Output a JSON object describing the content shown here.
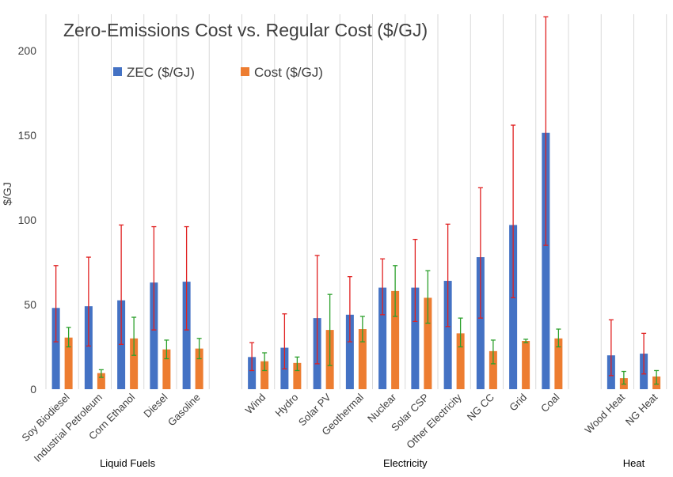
{
  "chart_data": {
    "type": "bar",
    "title": "Zero-Emissions Cost vs. Regular Cost ($/GJ)",
    "ylabel": "$/GJ",
    "xlabel": "",
    "ylim": [
      0,
      220
    ],
    "yticks": [
      0,
      50,
      100,
      150,
      200
    ],
    "grid": "vertical",
    "legend_position": "top-left",
    "groups": [
      {
        "label": "Liquid Fuels",
        "categories": [
          "Soy Biodiesel",
          "Industrial Petroleum",
          "Corn Ethanol",
          "Diesel",
          "Gasoline"
        ]
      },
      {
        "label": "Electricity",
        "categories": [
          "Wind",
          "Hydro",
          "Solar PV",
          "Geothermal",
          "Nuclear",
          "Solar CSP",
          "Other Electricity",
          "NG CC",
          "Grid",
          "Coal"
        ]
      },
      {
        "label": "Heat",
        "categories": [
          "Wood Heat",
          "NG Heat"
        ]
      }
    ],
    "series": [
      {
        "name": "ZEC ($/GJ)",
        "color": "#4472c4",
        "error_color": "#e02020",
        "values": [
          48,
          49,
          52.5,
          63,
          63.5,
          19,
          24.5,
          42,
          44,
          60,
          60,
          64,
          78,
          97,
          151.5,
          20,
          21
        ],
        "error_low": [
          28,
          25.5,
          26.5,
          35,
          35,
          11,
          12,
          15,
          28,
          44,
          40,
          37,
          42,
          54,
          85,
          8,
          9
        ],
        "error_high": [
          73,
          78,
          97,
          96,
          96,
          27.5,
          44.5,
          79,
          66.5,
          77,
          88.5,
          97.5,
          119,
          156,
          220,
          41,
          33
        ]
      },
      {
        "name": "Cost ($/GJ)",
        "color": "#ed7d31",
        "error_color": "#2ca02c",
        "values": [
          30.5,
          9.5,
          30,
          23.5,
          24,
          16.5,
          15.5,
          35,
          35.5,
          58,
          54,
          33,
          22.5,
          28.5,
          30,
          6.5,
          7.5
        ],
        "error_low": [
          25,
          7,
          20,
          18,
          18,
          11,
          11,
          14,
          28,
          43,
          39,
          25,
          15,
          27.5,
          25,
          3,
          3
        ],
        "error_high": [
          36.5,
          11.5,
          42.5,
          29,
          30,
          21.5,
          19,
          56,
          43,
          73,
          70,
          42,
          29,
          29.5,
          35.5,
          10.5,
          11
        ]
      }
    ]
  }
}
